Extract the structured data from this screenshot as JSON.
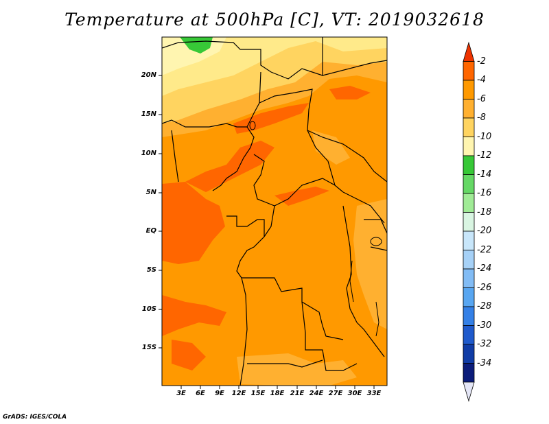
{
  "title": "Temperature at 500hPa [C], VT: 2019032618",
  "credit": "GrADS: IGES/COLA",
  "lat_labels": [
    "20N",
    "15N",
    "10N",
    "5N",
    "EQ",
    "5S",
    "10S",
    "15S"
  ],
  "lon_labels": [
    "3E",
    "6E",
    "9E",
    "12E",
    "15E",
    "18E",
    "21E",
    "24E",
    "27E",
    "30E",
    "33E"
  ],
  "colorbar": {
    "labels": [
      "-2",
      "-4",
      "-6",
      "-8",
      "-10",
      "-12",
      "-14",
      "-16",
      "-18",
      "-20",
      "-22",
      "-24",
      "-26",
      "-28",
      "-30",
      "-32",
      "-34"
    ],
    "colors": [
      "#ee3300",
      "#ff6600",
      "#ff9900",
      "#ffb030",
      "#ffd460",
      "#fff5b0",
      "#37c837",
      "#65d865",
      "#a0eb96",
      "#d9f5e2",
      "#c8e6fa",
      "#a6d1f7",
      "#82bcf5",
      "#58a6f1",
      "#3480e6",
      "#1f5acc",
      "#103ca6",
      "#0b1c7a",
      "#e4e6f6"
    ]
  },
  "map": {
    "region": "Central Africa",
    "lon_range": [
      0,
      35
    ],
    "lat_range": [
      -20,
      25
    ],
    "variable": "Temperature at 500hPa",
    "units": "C"
  }
}
